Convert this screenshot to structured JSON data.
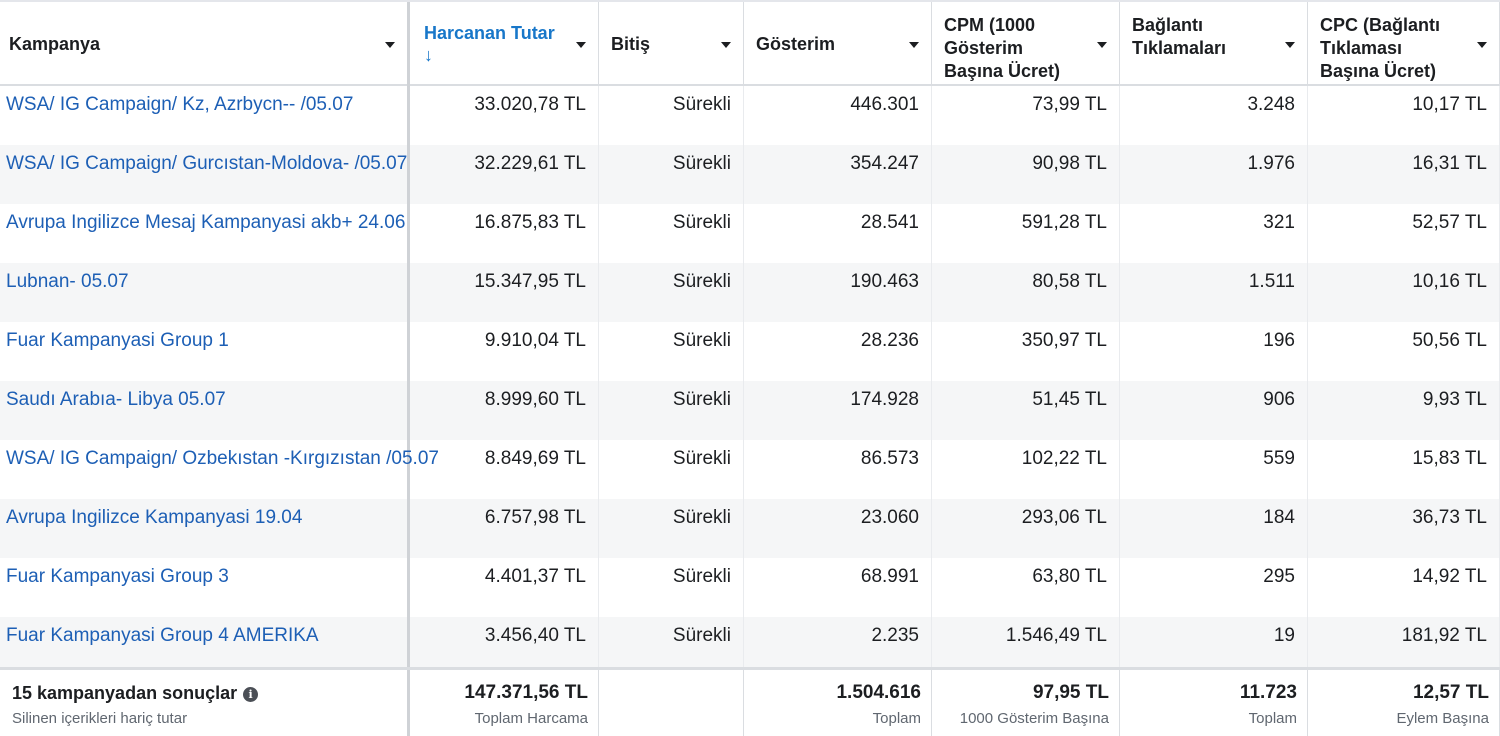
{
  "columns": [
    {
      "label": "Kampanya"
    },
    {
      "label": "Harcanan Tutar",
      "sort_indicator": "↓"
    },
    {
      "label": "Bitiş"
    },
    {
      "label": "Gösterim"
    },
    {
      "label": "CPM (1000 Gösterim Başına Ücret)"
    },
    {
      "label": "Bağlantı Tıklamaları"
    },
    {
      "label": "CPC (Bağlantı Tıklaması Başına Ücret)"
    }
  ],
  "rows": [
    {
      "campaign": "WSA/ IG Campaign/ Kz, Azrbycn-- /05.07",
      "spend": "33.020,78 TL",
      "end": "Sürekli",
      "impressions": "446.301",
      "cpm": "73,99 TL",
      "clicks": "3.248",
      "cpc": "10,17 TL"
    },
    {
      "campaign": "WSA/ IG Campaign/ Gurcıstan-Moldova- /05.07",
      "spend": "32.229,61 TL",
      "end": "Sürekli",
      "impressions": "354.247",
      "cpm": "90,98 TL",
      "clicks": "1.976",
      "cpc": "16,31 TL"
    },
    {
      "campaign": "Avrupa Ingilizce Mesaj Kampanyasi akb+ 24.06",
      "spend": "16.875,83 TL",
      "end": "Sürekli",
      "impressions": "28.541",
      "cpm": "591,28 TL",
      "clicks": "321",
      "cpc": "52,57 TL"
    },
    {
      "campaign": "Lubnan- 05.07",
      "spend": "15.347,95 TL",
      "end": "Sürekli",
      "impressions": "190.463",
      "cpm": "80,58 TL",
      "clicks": "1.511",
      "cpc": "10,16 TL"
    },
    {
      "campaign": "Fuar Kampanyasi Group 1",
      "spend": "9.910,04 TL",
      "end": "Sürekli",
      "impressions": "28.236",
      "cpm": "350,97 TL",
      "clicks": "196",
      "cpc": "50,56 TL"
    },
    {
      "campaign": "Saudı Arabıa- Libya 05.07",
      "spend": "8.999,60 TL",
      "end": "Sürekli",
      "impressions": "174.928",
      "cpm": "51,45 TL",
      "clicks": "906",
      "cpc": "9,93 TL"
    },
    {
      "campaign": "WSA/ IG Campaign/ Ozbekıstan -Kırgızıstan /05.07",
      "spend": "8.849,69 TL",
      "end": "Sürekli",
      "impressions": "86.573",
      "cpm": "102,22 TL",
      "clicks": "559",
      "cpc": "15,83 TL"
    },
    {
      "campaign": "Avrupa Ingilizce Kampanyasi 19.04",
      "spend": "6.757,98 TL",
      "end": "Sürekli",
      "impressions": "23.060",
      "cpm": "293,06 TL",
      "clicks": "184",
      "cpc": "36,73 TL"
    },
    {
      "campaign": "Fuar Kampanyasi Group 3",
      "spend": "4.401,37 TL",
      "end": "Sürekli",
      "impressions": "68.991",
      "cpm": "63,80 TL",
      "clicks": "295",
      "cpc": "14,92 TL"
    },
    {
      "campaign": "Fuar Kampanyasi Group 4 AMERIKA",
      "spend": "3.456,40 TL",
      "end": "Sürekli",
      "impressions": "2.235",
      "cpm": "1.546,49 TL",
      "clicks": "19",
      "cpc": "181,92 TL"
    }
  ],
  "footer": {
    "title": "15 kampanyadan sonuçlar",
    "info_icon": "info-icon",
    "subtitle": "Silinen içerikleri hariç tutar",
    "spend_total": "147.371,56 TL",
    "spend_label": "Toplam Harcama",
    "impressions_total": "1.504.616",
    "impressions_label": "Toplam",
    "cpm_total": "97,95 TL",
    "cpm_label": "1000 Gösterim Başına",
    "clicks_total": "11.723",
    "clicks_label": "Toplam",
    "cpc_total": "12,57 TL",
    "cpc_label": "Eylem Başına"
  }
}
